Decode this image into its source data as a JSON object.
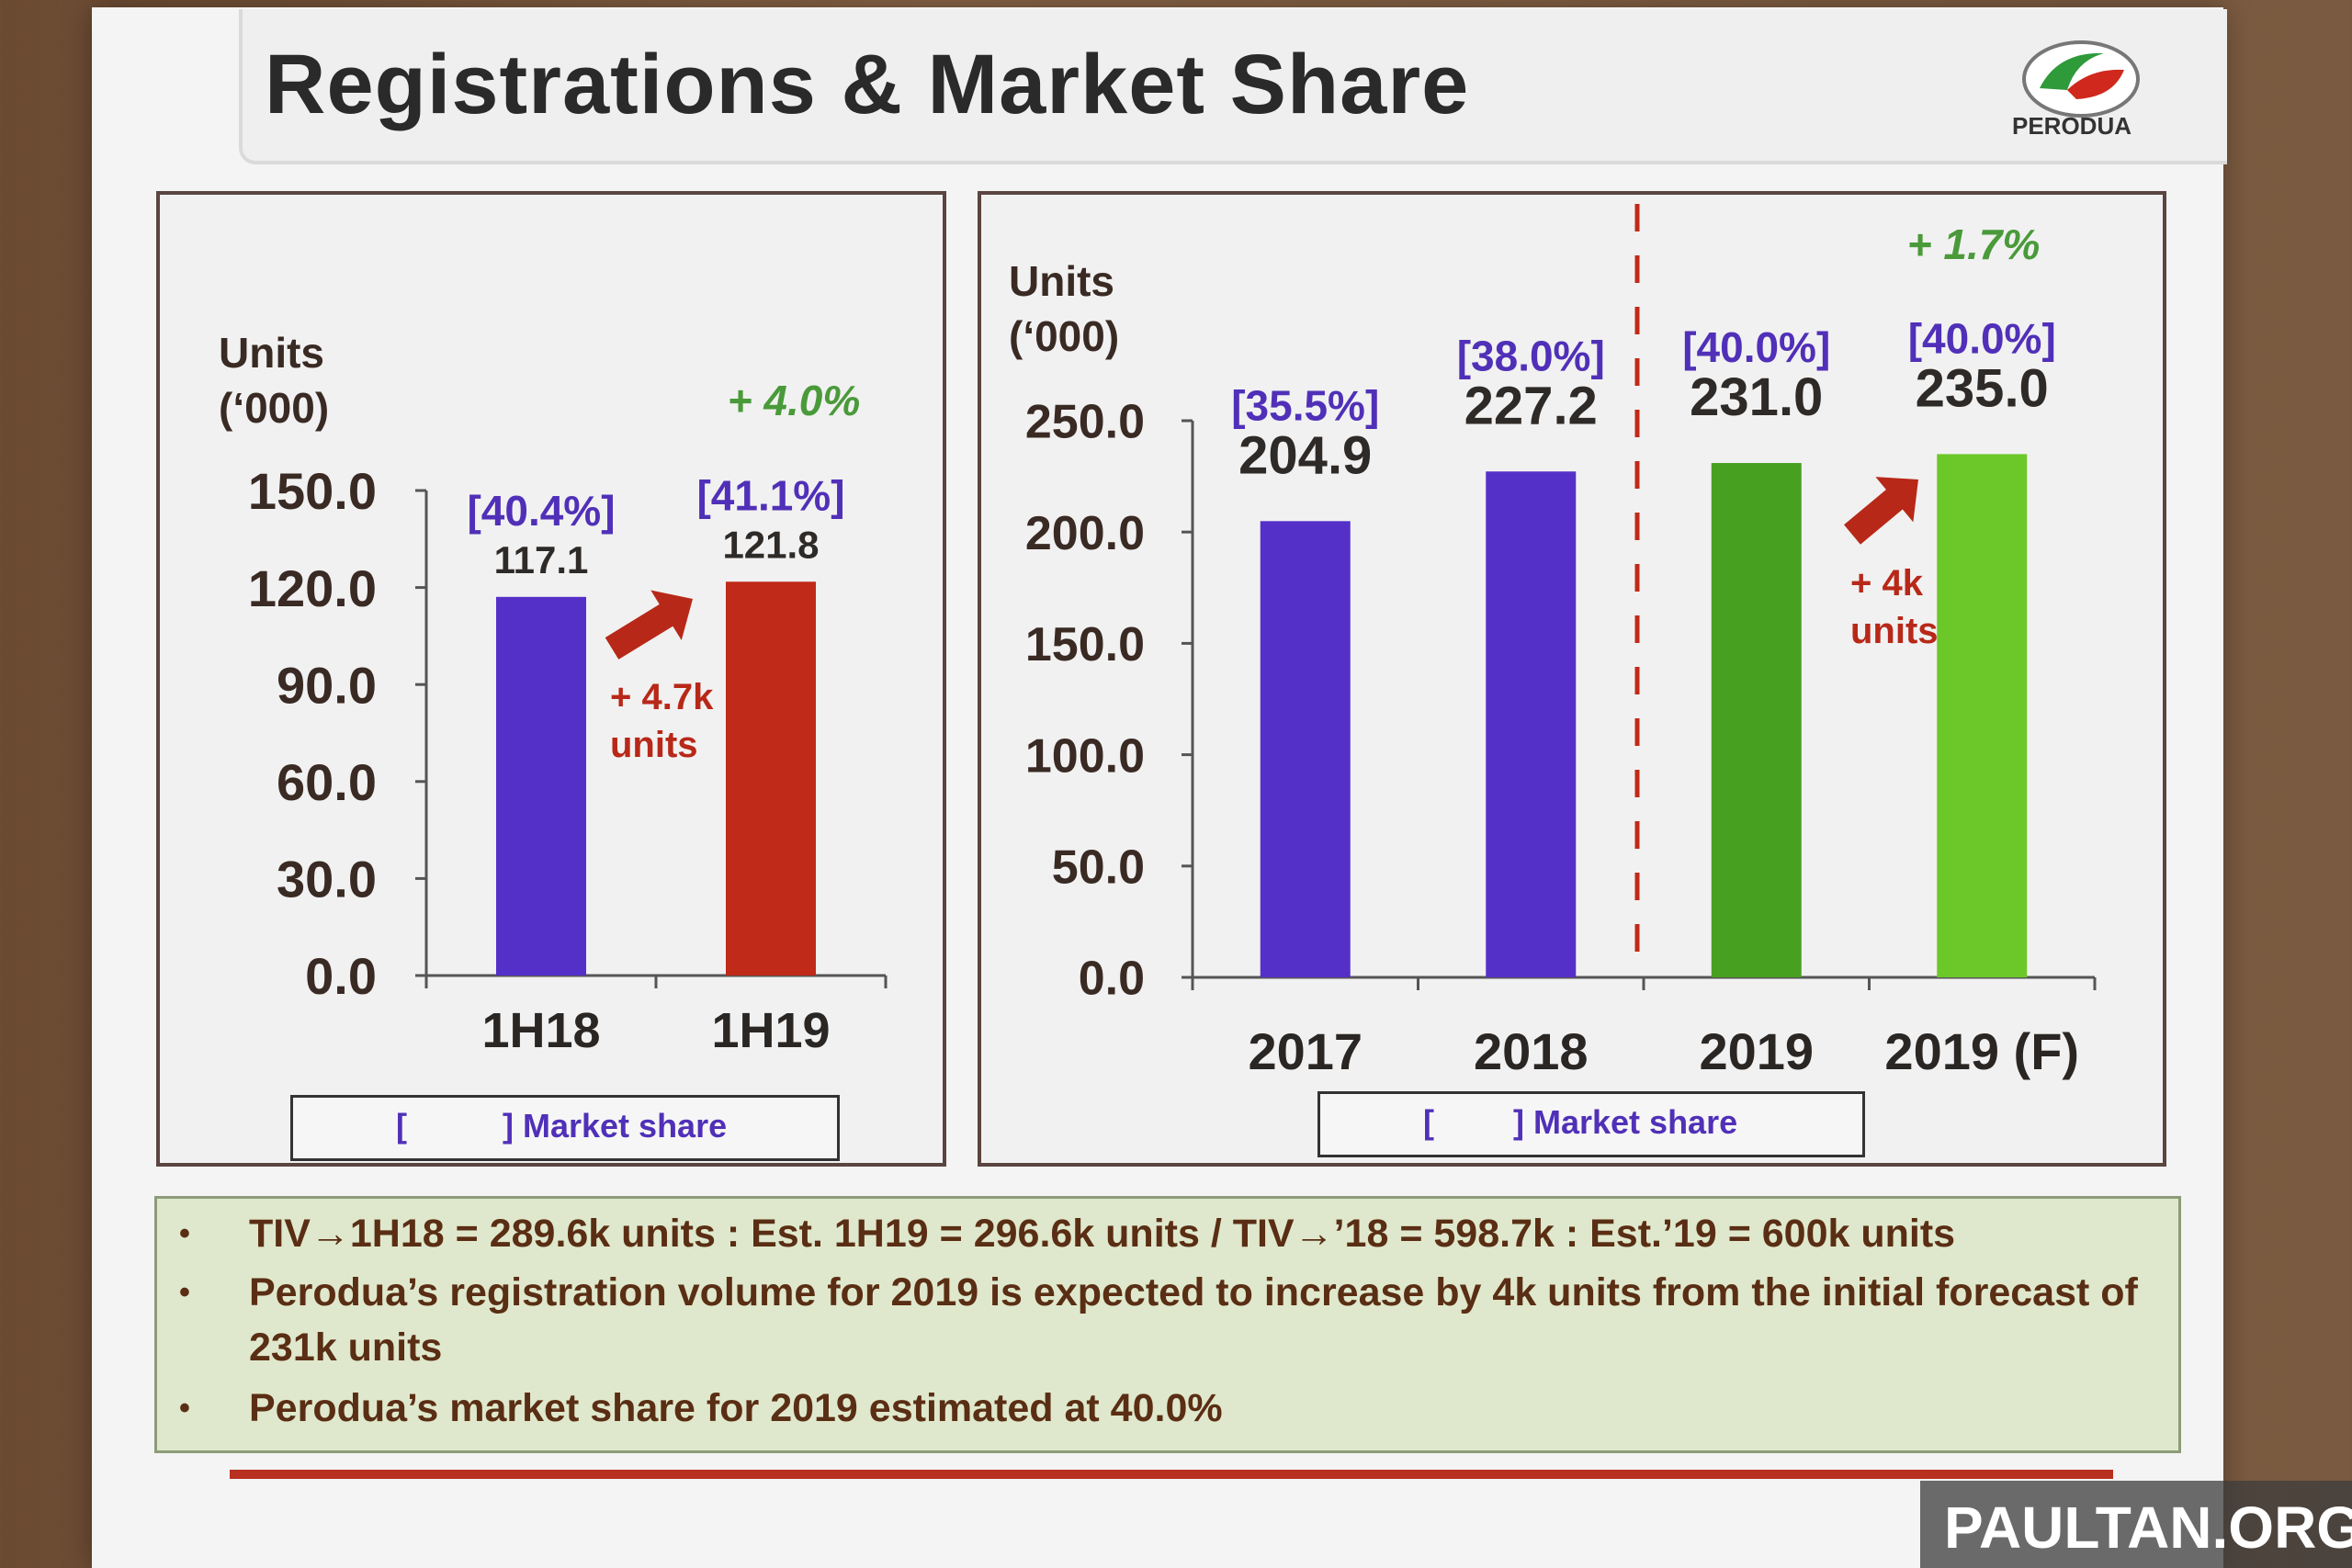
{
  "slide": {
    "title": "Registrations & Market Share",
    "logo_text": "PERODUA"
  },
  "legend": {
    "open_bracket": "[",
    "close_label": "] Market share"
  },
  "bullets": [
    "TIV→1H18 = 289.6k units : Est. 1H19 = 296.6k units / TIV→’18 = 598.7k : Est.’19 = 600k units",
    "Perodua’s registration volume for 2019 is expected to increase by 4k units from the initial forecast of 231k units",
    "Perodua’s market share for 2019 estimated at 40.0%"
  ],
  "watermark": "PAULTAN.ORG",
  "colors": {
    "purple": "#5530c8",
    "red": "#c02a18",
    "green_dark": "#48a020",
    "green_light": "#6cc828",
    "growth_green": "#4a9a3a",
    "share_text": "#5030b8",
    "arrow": "#b82818"
  },
  "chart_data": [
    {
      "type": "bar",
      "ylabel": "Units\n(‘000)",
      "ylim": [
        0,
        150
      ],
      "yticks": [
        "0.0",
        "30.0",
        "60.0",
        "90.0",
        "120.0",
        "150.0"
      ],
      "categories": [
        "1H18",
        "1H19"
      ],
      "values": [
        117.1,
        121.8
      ],
      "value_labels": [
        "117.1",
        "121.8"
      ],
      "market_share": [
        "[40.4%]",
        "[41.1%]"
      ],
      "bar_colors": [
        "#5530c8",
        "#c02a18"
      ],
      "growth": "+ 4.0%",
      "arrow_annotation": [
        "+ 4.7k",
        "units"
      ]
    },
    {
      "type": "bar",
      "ylabel": "Units\n(‘000)",
      "ylim": [
        0,
        250
      ],
      "yticks": [
        "0.0",
        "50.0",
        "100.0",
        "150.0",
        "200.0",
        "250.0"
      ],
      "categories": [
        "2017",
        "2018",
        "2019",
        "2019 (F)"
      ],
      "values": [
        204.9,
        227.2,
        231.0,
        235.0
      ],
      "value_labels": [
        "204.9",
        "227.2",
        "231.0",
        "235.0"
      ],
      "market_share": [
        "[35.5%]",
        "[38.0%]",
        "[40.0%]",
        "[40.0%]"
      ],
      "bar_colors": [
        "#5530c8",
        "#5530c8",
        "#48a020",
        "#6cc828"
      ],
      "growth": "+ 1.7%",
      "arrow_annotation": [
        "+ 4k",
        "units"
      ]
    }
  ]
}
